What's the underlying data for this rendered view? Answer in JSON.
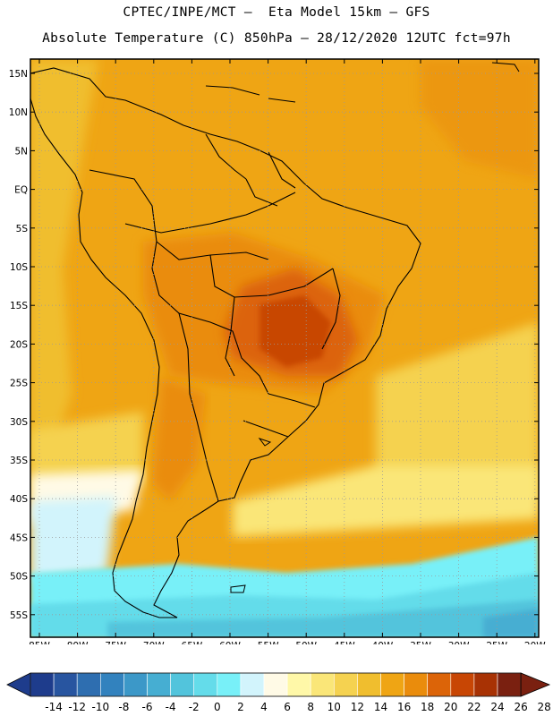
{
  "header": {
    "line1": "CPTEC/INPE/MCT –  Eta Model 15km – GFS",
    "line2": "Absolute Temperature (C) 850hPa – 28/12/2020 12UTC fct=97h"
  },
  "map": {
    "lat_labels": [
      "15N",
      "10N",
      "5N",
      "EQ",
      "5S",
      "10S",
      "15S",
      "20S",
      "25S",
      "30S",
      "35S",
      "40S",
      "45S",
      "50S",
      "55S"
    ],
    "lon_labels": [
      "85W",
      "80W",
      "75W",
      "70W",
      "65W",
      "60W",
      "55W",
      "50W",
      "45W",
      "40W",
      "35W",
      "30W",
      "25W",
      "20W"
    ],
    "background_color": "#efa514"
  },
  "legend": {
    "labels": [
      "-14",
      "-12",
      "-10",
      "-8",
      "-6",
      "-4",
      "-2",
      "0",
      "2",
      "4",
      "6",
      "8",
      "10",
      "12",
      "14",
      "16",
      "18",
      "20",
      "22",
      "24",
      "26",
      "28"
    ],
    "colors": [
      "#1e3c8c",
      "#2855a0",
      "#2e6eb0",
      "#3282be",
      "#3c98c8",
      "#46aed2",
      "#52c4dc",
      "#64dcea",
      "#78f0f8",
      "#d2f4fc",
      "#fffae6",
      "#fff8a8",
      "#fae678",
      "#f5d250",
      "#f0be2e",
      "#efa514",
      "#ea8c0c",
      "#dc6408",
      "#c84604",
      "#a83204",
      "#7a2010"
    ]
  }
}
